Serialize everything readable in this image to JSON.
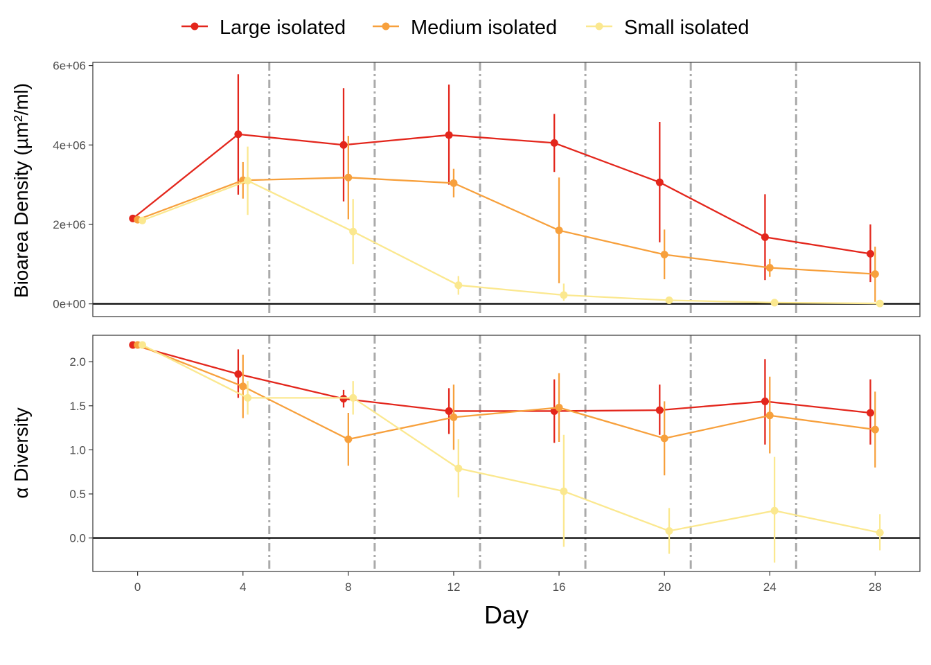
{
  "legend": [
    {
      "key": "large",
      "label": "Large isolated"
    },
    {
      "key": "medium",
      "label": "Medium isolated"
    },
    {
      "key": "small",
      "label": "Small isolated"
    }
  ],
  "colors": {
    "large": "#e3261c",
    "medium": "#f7a03c",
    "small": "#fbe88f",
    "vline": "#aaaaaa"
  },
  "chart_data": [
    {
      "type": "line",
      "ylabel": "Bioarea Density (µm²/ml)",
      "xlabel": "Day",
      "xlim": [
        -1.7,
        29.7
      ],
      "ylim": [
        -320000,
        6080000
      ],
      "yticks": [
        {
          "value": 0,
          "label": "0e+00"
        },
        {
          "value": 2000000,
          "label": "2e+06"
        },
        {
          "value": 4000000,
          "label": "4e+06"
        },
        {
          "value": 6000000,
          "label": "6e+06"
        }
      ],
      "hline": 0,
      "vlines": [
        5,
        9,
        13,
        17,
        21,
        25
      ],
      "series": [
        {
          "key": "large",
          "name": "Large isolated",
          "x": [
            0,
            4,
            8,
            12,
            16,
            20,
            24,
            28
          ],
          "y": [
            2150000,
            4270000,
            4000000,
            4250000,
            4050000,
            3060000,
            1680000,
            1260000
          ],
          "lower": [
            2150000,
            2750000,
            2580000,
            3000000,
            3320000,
            1550000,
            600000,
            550000
          ],
          "upper": [
            2150000,
            5780000,
            5430000,
            5520000,
            4780000,
            4580000,
            2760000,
            2000000
          ]
        },
        {
          "key": "medium",
          "name": "Medium isolated",
          "x": [
            0,
            4,
            8,
            12,
            16,
            20,
            24,
            28
          ],
          "y": [
            2120000,
            3110000,
            3180000,
            3040000,
            1850000,
            1240000,
            910000,
            750000
          ],
          "lower": [
            2120000,
            2650000,
            2130000,
            2680000,
            520000,
            620000,
            680000,
            50000
          ],
          "upper": [
            2120000,
            3570000,
            4230000,
            3400000,
            3180000,
            1870000,
            1130000,
            1440000
          ]
        },
        {
          "key": "small",
          "name": "Small isolated",
          "x": [
            0,
            4,
            8,
            12,
            16,
            20,
            24,
            28
          ],
          "y": [
            2100000,
            3100000,
            1820000,
            470000,
            220000,
            90000,
            30000,
            10000
          ],
          "lower": [
            2100000,
            2240000,
            1000000,
            230000,
            80000,
            40000,
            10000,
            0
          ],
          "upper": [
            2100000,
            3960000,
            2640000,
            700000,
            510000,
            150000,
            60000,
            30000
          ]
        }
      ]
    },
    {
      "type": "line",
      "ylabel": "α Diversity",
      "xlabel": "Day",
      "xlim": [
        -1.7,
        29.7
      ],
      "ylim": [
        -0.38,
        2.3
      ],
      "yticks": [
        {
          "value": 0,
          "label": "0.0"
        },
        {
          "value": 0.5,
          "label": "0.5"
        },
        {
          "value": 1.0,
          "label": "1.0"
        },
        {
          "value": 1.5,
          "label": "1.5"
        },
        {
          "value": 2.0,
          "label": "2.0"
        }
      ],
      "xticks": [
        {
          "value": 0,
          "label": "0"
        },
        {
          "value": 4,
          "label": "4"
        },
        {
          "value": 8,
          "label": "8"
        },
        {
          "value": 12,
          "label": "12"
        },
        {
          "value": 16,
          "label": "16"
        },
        {
          "value": 20,
          "label": "20"
        },
        {
          "value": 24,
          "label": "24"
        },
        {
          "value": 28,
          "label": "28"
        }
      ],
      "hline": 0,
      "vlines": [
        5,
        9,
        13,
        17,
        21,
        25
      ],
      "series": [
        {
          "key": "large",
          "name": "Large isolated",
          "x": [
            0,
            4,
            8,
            12,
            16,
            20,
            24,
            28
          ],
          "y": [
            2.19,
            1.86,
            1.58,
            1.44,
            1.44,
            1.45,
            1.55,
            1.42
          ],
          "lower": [
            2.19,
            1.59,
            1.48,
            1.18,
            1.08,
            1.17,
            1.06,
            1.06
          ],
          "upper": [
            2.19,
            2.14,
            1.68,
            1.7,
            1.8,
            1.74,
            2.03,
            1.8
          ]
        },
        {
          "key": "medium",
          "name": "Medium isolated",
          "x": [
            0,
            4,
            8,
            12,
            16,
            20,
            24,
            28
          ],
          "y": [
            2.19,
            1.72,
            1.12,
            1.37,
            1.48,
            1.13,
            1.39,
            1.23
          ],
          "lower": [
            2.19,
            1.36,
            0.82,
            1.0,
            1.09,
            0.71,
            0.96,
            0.8
          ],
          "upper": [
            2.19,
            2.08,
            1.42,
            1.74,
            1.87,
            1.55,
            1.83,
            1.66
          ]
        },
        {
          "key": "small",
          "name": "Small isolated",
          "x": [
            0,
            4,
            8,
            12,
            16,
            20,
            24,
            28
          ],
          "y": [
            2.19,
            1.59,
            1.59,
            0.79,
            0.53,
            0.08,
            0.31,
            0.06
          ],
          "lower": [
            2.19,
            1.4,
            1.4,
            0.46,
            -0.1,
            -0.18,
            -0.28,
            -0.14
          ],
          "upper": [
            2.19,
            1.78,
            1.78,
            1.12,
            1.17,
            0.34,
            0.92,
            0.27
          ]
        }
      ]
    }
  ]
}
